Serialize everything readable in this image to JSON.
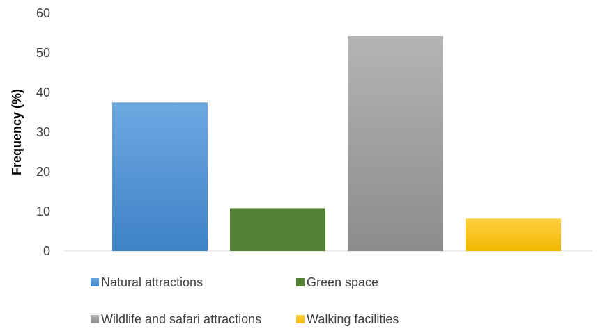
{
  "chart_data": {
    "type": "bar",
    "categories": [
      "Natural attractions",
      "Green space",
      "Wildlife and safari attractions",
      "Walking facilities"
    ],
    "values": [
      37.5,
      10.8,
      54.2,
      8.2
    ],
    "colors": [
      [
        "#6ea8e0",
        "#3f82c8"
      ],
      [
        "#548235",
        "#548235"
      ],
      [
        "#b4b4b4",
        "#8c8c8c"
      ],
      [
        "#ffd040",
        "#f0b800"
      ]
    ],
    "xlabel": "",
    "ylabel": "Frequency (%)",
    "ylim": [
      0,
      60
    ],
    "yticks": [
      0,
      10,
      20,
      30,
      40,
      50,
      60
    ],
    "grid": false,
    "legend": {
      "position": "bottom",
      "entries": [
        "Natural attractions",
        "Green space",
        "Wildlife and safari attractions",
        "Walking facilities"
      ]
    }
  }
}
